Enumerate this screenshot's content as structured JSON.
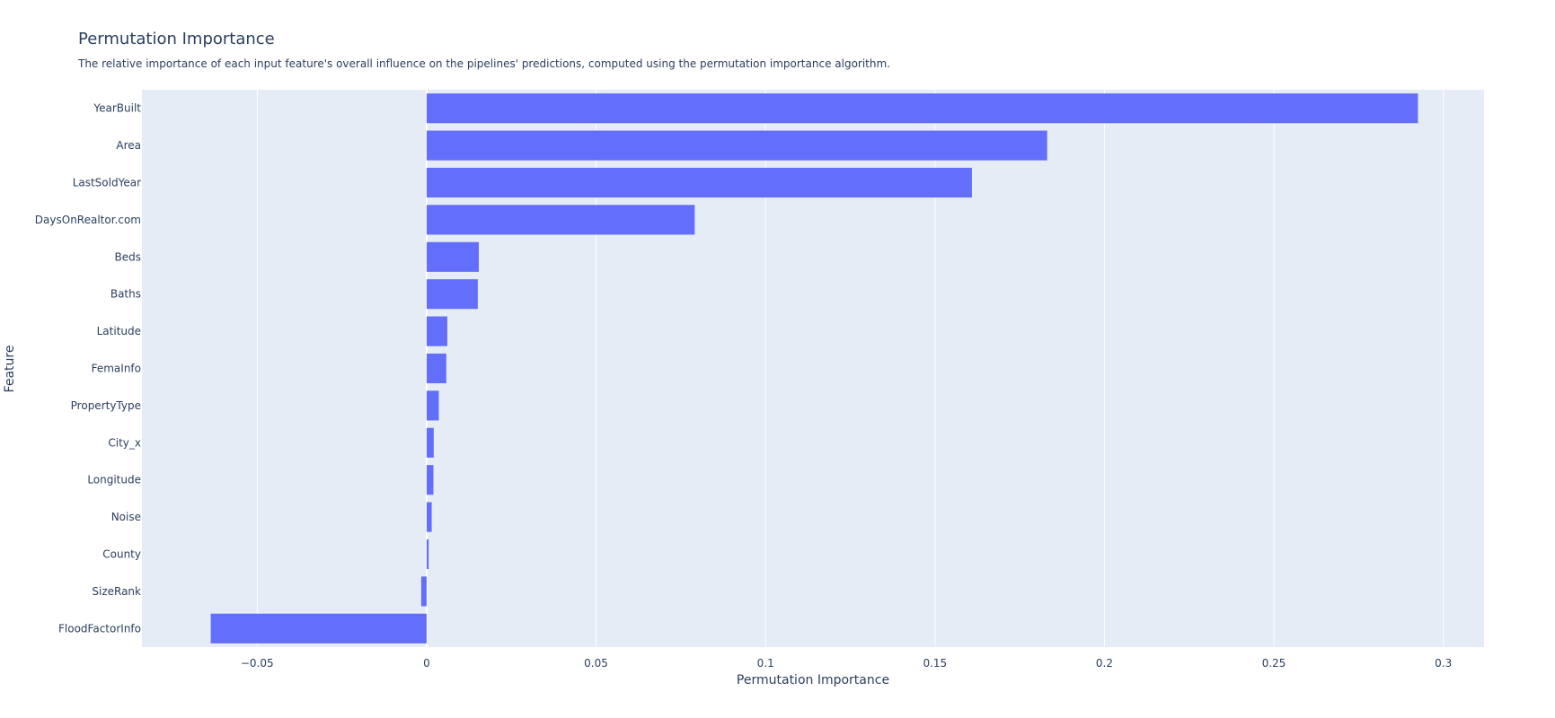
{
  "chart_data": {
    "type": "bar",
    "orientation": "horizontal",
    "title": "Permutation Importance",
    "subtitle": "The relative importance of each input feature's overall influence on the pipelines' predictions, computed using the permutation importance algorithm.",
    "xlabel": "Permutation Importance",
    "ylabel": "Feature",
    "xlim": [
      -0.084,
      0.312
    ],
    "xticks": [
      {
        "value": -0.05,
        "label": "−0.05"
      },
      {
        "value": 0,
        "label": "0"
      },
      {
        "value": 0.05,
        "label": "0.05"
      },
      {
        "value": 0.1,
        "label": "0.1"
      },
      {
        "value": 0.15,
        "label": "0.15"
      },
      {
        "value": 0.2,
        "label": "0.2"
      },
      {
        "value": 0.25,
        "label": "0.25"
      },
      {
        "value": 0.3,
        "label": "0.3"
      }
    ],
    "grid": true,
    "categories": [
      "YearBuilt",
      "Area",
      "LastSoldYear",
      "DaysOnRealtor.com",
      "Beds",
      "Baths",
      "Latitude",
      "FemaInfo",
      "PropertyType",
      "City_x",
      "Longitude",
      "Noise",
      "County",
      "SizeRank",
      "FloodFactorInfo"
    ],
    "values": [
      0.2925,
      0.1831,
      0.1609,
      0.0791,
      0.0154,
      0.0151,
      0.0061,
      0.0058,
      0.0036,
      0.0021,
      0.002,
      0.0015,
      0.0006,
      -0.0016,
      -0.0637
    ]
  },
  "colors": {
    "bar": "#636efa",
    "plot_background": "#e5ecf6",
    "grid": "#ffffff",
    "text": "#2a3f5f"
  }
}
